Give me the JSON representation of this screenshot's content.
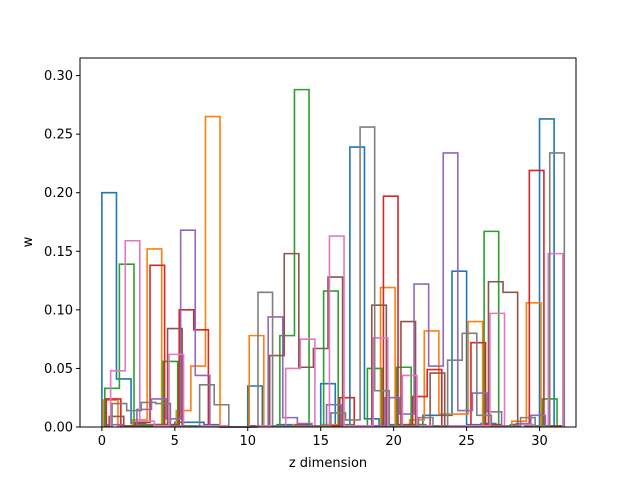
{
  "chart_data": {
    "type": "bar",
    "style": "step-histogram",
    "xlabel": "z dimension",
    "ylabel": "w",
    "xlim": [
      -1.5,
      32.5
    ],
    "ylim": [
      0,
      0.315
    ],
    "xticks": [
      0,
      5,
      10,
      15,
      20,
      25,
      30
    ],
    "xtick_labels": [
      "0",
      "5",
      "10",
      "15",
      "20",
      "25",
      "30"
    ],
    "yticks": [
      0,
      0.05,
      0.1,
      0.15,
      0.2,
      0.25,
      0.3
    ],
    "ytick_labels": [
      "0.00",
      "0.05",
      "0.10",
      "0.15",
      "0.20",
      "0.25",
      "0.30"
    ],
    "grid": false,
    "legend": false,
    "bin_width": 1,
    "bins": [
      0,
      1,
      2,
      3,
      4,
      5,
      6,
      7,
      8,
      9,
      10,
      11,
      12,
      13,
      14,
      15,
      16,
      17,
      18,
      19,
      20,
      21,
      22,
      23,
      24,
      25,
      26,
      27,
      28,
      29,
      30
    ],
    "series": [
      {
        "color": "#1f77b4",
        "offset": 0.0,
        "values": [
          0.2,
          0.041,
          0.003,
          0.002,
          0.001,
          0.004,
          0.004,
          0.002,
          0.0,
          0.0,
          0.035,
          0.001,
          0.002,
          0.001,
          0.001,
          0.037,
          0.001,
          0.239,
          0.007,
          0.002,
          0.001,
          0.002,
          0.01,
          0.01,
          0.133,
          0.002,
          0.003,
          0.001,
          0.002,
          0.001,
          0.263
        ]
      },
      {
        "color": "#ff7f0e",
        "offset": 0.1,
        "values": [
          0.023,
          0.001,
          0.006,
          0.152,
          0.002,
          0.014,
          0.052,
          0.265,
          0.0,
          0.0,
          0.078,
          0.001,
          0.001,
          0.002,
          0.001,
          0.002,
          0.001,
          0.001,
          0.001,
          0.119,
          0.002,
          0.006,
          0.082,
          0.011,
          0.011,
          0.09,
          0.002,
          0.001,
          0.005,
          0.106,
          0.001
        ]
      },
      {
        "color": "#2ca02c",
        "offset": 0.2,
        "values": [
          0.033,
          0.139,
          0.002,
          0.002,
          0.056,
          0.001,
          0.001,
          0.001,
          0.0,
          0.0,
          0.001,
          0.001,
          0.078,
          0.288,
          0.001,
          0.116,
          0.002,
          0.001,
          0.05,
          0.001,
          0.051,
          0.002,
          0.001,
          0.001,
          0.001,
          0.001,
          0.167,
          0.001,
          0.002,
          0.001,
          0.024
        ]
      },
      {
        "color": "#d62728",
        "offset": 0.3,
        "values": [
          0.024,
          0.001,
          0.004,
          0.138,
          0.002,
          0.1,
          0.083,
          0.001,
          0.0,
          0.0,
          0.001,
          0.001,
          0.001,
          0.002,
          0.001,
          0.001,
          0.025,
          0.001,
          0.001,
          0.197,
          0.002,
          0.026,
          0.049,
          0.001,
          0.001,
          0.072,
          0.002,
          0.001,
          0.002,
          0.219,
          0.001
        ]
      },
      {
        "color": "#9467bd",
        "offset": 0.4,
        "values": [
          0.002,
          0.001,
          0.015,
          0.024,
          0.007,
          0.168,
          0.044,
          0.001,
          0.0,
          0.0,
          0.001,
          0.094,
          0.008,
          0.003,
          0.001,
          0.019,
          0.001,
          0.001,
          0.001,
          0.025,
          0.011,
          0.122,
          0.052,
          0.234,
          0.014,
          0.029,
          0.013,
          0.001,
          0.003,
          0.01,
          0.001
        ]
      },
      {
        "color": "#8c564b",
        "offset": 0.5,
        "values": [
          0.009,
          0.001,
          0.001,
          0.002,
          0.084,
          0.001,
          0.001,
          0.001,
          0.0,
          0.0,
          0.001,
          0.061,
          0.148,
          0.051,
          0.067,
          0.128,
          0.001,
          0.001,
          0.104,
          0.001,
          0.09,
          0.001,
          0.046,
          0.001,
          0.001,
          0.001,
          0.124,
          0.115,
          0.002,
          0.001,
          0.001
        ]
      },
      {
        "color": "#e377c2",
        "offset": 0.6,
        "values": [
          0.048,
          0.159,
          0.005,
          0.001,
          0.062,
          0.001,
          0.001,
          0.001,
          0.0,
          0.0,
          0.001,
          0.001,
          0.05,
          0.075,
          0.001,
          0.163,
          0.001,
          0.001,
          0.076,
          0.001,
          0.044,
          0.001,
          0.001,
          0.001,
          0.001,
          0.001,
          0.097,
          0.001,
          0.002,
          0.001,
          0.148
        ]
      },
      {
        "color": "#7f7f7f",
        "offset": 0.7,
        "values": [
          0.02,
          0.014,
          0.021,
          0.02,
          0.001,
          0.001,
          0.036,
          0.019,
          0.0,
          0.0,
          0.115,
          0.001,
          0.001,
          0.001,
          0.001,
          0.012,
          0.006,
          0.256,
          0.031,
          0.001,
          0.001,
          0.008,
          0.001,
          0.057,
          0.08,
          0.01,
          0.001,
          0.001,
          0.008,
          0.001,
          0.234
        ]
      }
    ]
  }
}
